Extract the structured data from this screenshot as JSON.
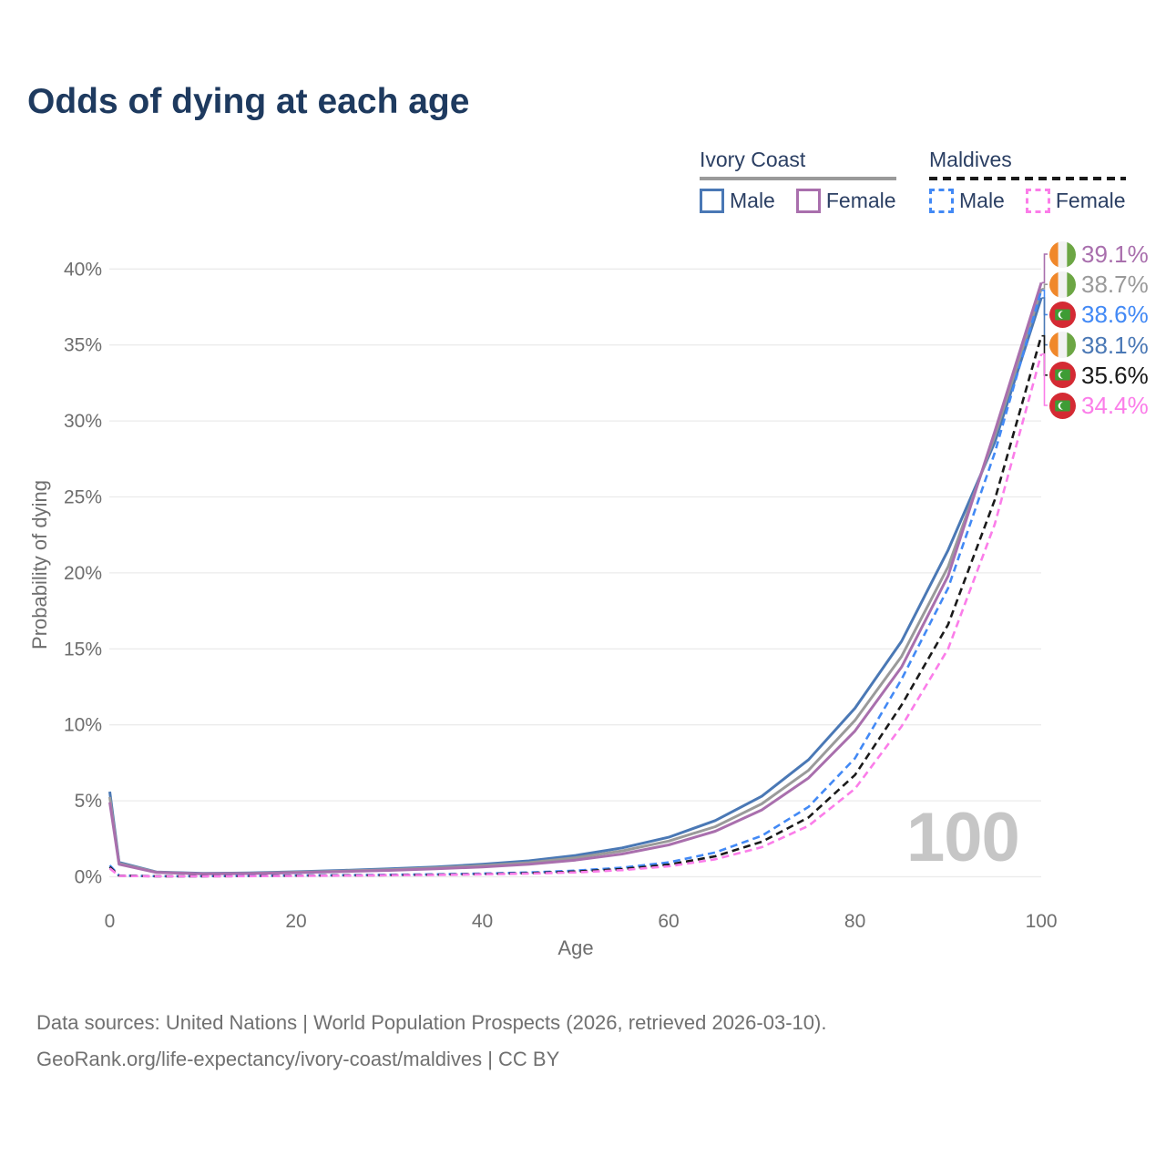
{
  "title": "Odds of dying at each age",
  "legend": {
    "groups": [
      {
        "name": "Ivory Coast",
        "line_style": "solid",
        "line_color": "#9a9a9a",
        "items": [
          {
            "label": "Male",
            "color": "#4a78b5",
            "style": "solid"
          },
          {
            "label": "Female",
            "color": "#a96fad",
            "style": "solid"
          }
        ]
      },
      {
        "name": "Maldives",
        "line_style": "dashed",
        "line_color": "#1a1a1a",
        "items": [
          {
            "label": "Male",
            "color": "#4289f5",
            "style": "dashed"
          },
          {
            "label": "Female",
            "color": "#fb7de9",
            "style": "dashed"
          }
        ]
      }
    ]
  },
  "axes": {
    "x_label": "Age",
    "y_label": "Probability of dying",
    "x_ticks": [
      0,
      20,
      40,
      60,
      80,
      100
    ],
    "y_ticks": [
      0,
      5,
      10,
      15,
      20,
      25,
      30,
      35,
      40
    ],
    "y_tick_suffix": "%"
  },
  "watermark": "100",
  "footer": {
    "line1": "Data sources: United Nations | World Population Prospects (2026, retrieved 2026-03-10).",
    "line2": "GeoRank.org/life-expectancy/ivory-coast/maldives | CC BY"
  },
  "colors": {
    "title_text": "#1e3a5f",
    "legend_text": "#2b3f63",
    "axis_text": "#6e6e6e",
    "gridline": "#ebebeb",
    "watermark": "#c6c6c6",
    "footer_text": "#707070"
  },
  "chart_data": {
    "type": "line",
    "title": "Odds of dying at each age",
    "xlabel": "Age",
    "ylabel": "Probability of dying",
    "xlim": [
      0,
      100
    ],
    "ylim": [
      0,
      40
    ],
    "grid": "horizontal",
    "legend_position": "top-right",
    "x": [
      0,
      1,
      5,
      10,
      15,
      20,
      25,
      30,
      35,
      40,
      45,
      50,
      55,
      60,
      65,
      70,
      75,
      80,
      85,
      90,
      95,
      100
    ],
    "series": [
      {
        "name": "Ivory Coast Female",
        "country": "Ivory Coast",
        "sex": "Female",
        "color": "#a96fad",
        "dash": false,
        "flag": "ivory-coast",
        "end_label": "39.1%",
        "end_value": 39.1,
        "values": [
          4.9,
          0.82,
          0.28,
          0.19,
          0.21,
          0.27,
          0.34,
          0.42,
          0.52,
          0.65,
          0.83,
          1.1,
          1.5,
          2.1,
          3.0,
          4.4,
          6.5,
          9.6,
          13.8,
          19.8,
          29.3,
          39.1
        ]
      },
      {
        "name": "Ivory Coast Total",
        "country": "Ivory Coast",
        "sex": "Both",
        "color": "#9a9a9a",
        "dash": false,
        "flag": "ivory-coast",
        "end_label": "38.7%",
        "end_value": 38.7,
        "values": [
          5.25,
          0.88,
          0.3,
          0.2,
          0.23,
          0.3,
          0.38,
          0.47,
          0.58,
          0.73,
          0.93,
          1.25,
          1.7,
          2.35,
          3.3,
          4.8,
          7.0,
          10.3,
          14.5,
          20.4,
          29.0,
          38.7
        ]
      },
      {
        "name": "Maldives Male",
        "country": "Maldives",
        "sex": "Male",
        "color": "#4289f5",
        "dash": true,
        "flag": "maldives",
        "end_label": "38.6%",
        "end_value": 38.6,
        "values": [
          0.75,
          0.08,
          0.04,
          0.04,
          0.06,
          0.09,
          0.11,
          0.13,
          0.16,
          0.21,
          0.28,
          0.4,
          0.6,
          0.95,
          1.6,
          2.7,
          4.6,
          7.8,
          13.0,
          19.0,
          27.9,
          38.6
        ]
      },
      {
        "name": "Ivory Coast Male",
        "country": "Ivory Coast",
        "sex": "Male",
        "color": "#4a78b5",
        "dash": false,
        "flag": "ivory-coast",
        "end_label": "38.1%",
        "end_value": 38.1,
        "values": [
          5.6,
          0.95,
          0.32,
          0.22,
          0.25,
          0.33,
          0.42,
          0.52,
          0.65,
          0.82,
          1.05,
          1.4,
          1.9,
          2.6,
          3.7,
          5.3,
          7.7,
          11.1,
          15.5,
          21.5,
          28.6,
          38.1
        ]
      },
      {
        "name": "Maldives Total",
        "country": "Maldives",
        "sex": "Both",
        "color": "#1a1a1a",
        "dash": true,
        "flag": "maldives",
        "end_label": "35.6%",
        "end_value": 35.6,
        "values": [
          0.65,
          0.07,
          0.035,
          0.035,
          0.05,
          0.07,
          0.09,
          0.11,
          0.14,
          0.18,
          0.24,
          0.34,
          0.51,
          0.8,
          1.35,
          2.3,
          3.9,
          6.7,
          11.3,
          16.6,
          24.8,
          35.6
        ]
      },
      {
        "name": "Maldives Female",
        "country": "Maldives",
        "sex": "Female",
        "color": "#fb7de9",
        "dash": true,
        "flag": "maldives",
        "end_label": "34.4%",
        "end_value": 34.4,
        "values": [
          0.55,
          0.06,
          0.03,
          0.03,
          0.04,
          0.06,
          0.08,
          0.1,
          0.12,
          0.16,
          0.21,
          0.29,
          0.44,
          0.69,
          1.15,
          1.95,
          3.35,
          5.8,
          9.9,
          15.0,
          23.2,
          34.4
        ]
      }
    ]
  }
}
